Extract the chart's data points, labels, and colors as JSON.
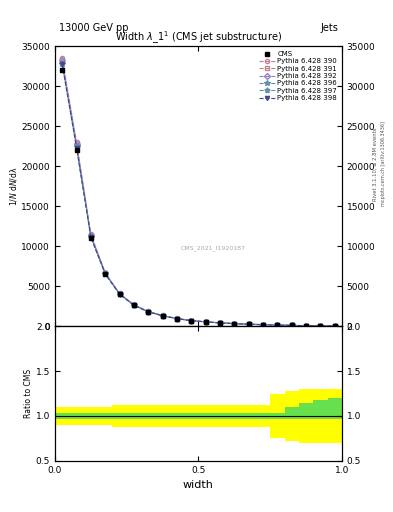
{
  "title_top": "13000 GeV pp",
  "title_right": "Jets",
  "plot_title": "Width $\\lambda\\_1^1$ (CMS jet substructure)",
  "xlabel": "width",
  "ylabel_ratio": "Ratio to CMS",
  "watermark": "CMS_2021_I1920187",
  "right_label1": "Rivet 3.1.10, ≥ 2.8M events",
  "right_label2": "mcplots.cern.ch [arXiv:1306.3436]",
  "x_data": [
    0.025,
    0.075,
    0.125,
    0.175,
    0.225,
    0.275,
    0.325,
    0.375,
    0.425,
    0.475,
    0.525,
    0.575,
    0.625,
    0.675,
    0.725,
    0.775,
    0.825,
    0.875,
    0.925,
    0.975
  ],
  "cms_data": [
    32000,
    22000,
    11000,
    6500,
    4000,
    2600,
    1800,
    1300,
    950,
    700,
    550,
    420,
    330,
    260,
    200,
    150,
    110,
    80,
    55,
    35
  ],
  "mc_390": [
    33500,
    23000,
    11500,
    6700,
    4100,
    2700,
    1850,
    1350,
    980,
    720,
    570,
    435,
    340,
    268,
    206,
    154,
    113,
    82,
    57,
    37
  ],
  "mc_391": [
    33000,
    22700,
    11300,
    6620,
    4060,
    2660,
    1830,
    1330,
    965,
    710,
    560,
    428,
    336,
    265,
    204,
    152,
    112,
    81,
    56,
    36
  ],
  "mc_392": [
    33200,
    22800,
    11350,
    6640,
    4070,
    2670,
    1840,
    1340,
    970,
    715,
    562,
    430,
    337,
    266,
    205,
    153,
    112,
    81,
    56,
    36
  ],
  "mc_396": [
    32800,
    22400,
    11150,
    6550,
    4020,
    2630,
    1810,
    1310,
    955,
    700,
    553,
    422,
    332,
    262,
    202,
    151,
    111,
    80,
    55,
    35
  ],
  "mc_397": [
    32900,
    22500,
    11200,
    6580,
    4030,
    2640,
    1815,
    1315,
    958,
    703,
    555,
    424,
    333,
    263,
    203,
    151,
    111,
    80,
    55,
    35
  ],
  "mc_398": [
    32700,
    22300,
    11100,
    6520,
    4010,
    2620,
    1800,
    1305,
    950,
    697,
    550,
    420,
    330,
    260,
    200,
    150,
    110,
    79,
    54,
    34
  ],
  "x_edges": [
    0.0,
    0.05,
    0.1,
    0.15,
    0.2,
    0.25,
    0.3,
    0.35,
    0.4,
    0.45,
    0.5,
    0.55,
    0.6,
    0.65,
    0.7,
    0.75,
    0.8,
    0.85,
    0.9,
    0.95,
    1.0
  ],
  "ylim_main": [
    0,
    35000
  ],
  "ylim_ratio": [
    0.5,
    2.0
  ],
  "xlim": [
    0.0,
    1.0
  ],
  "yticks_main": [
    0,
    5000,
    10000,
    15000,
    20000,
    25000,
    30000,
    35000
  ],
  "xticks_main": [
    0.0,
    0.5,
    1.0
  ],
  "ratio_yticks": [
    0.5,
    1.0,
    1.5,
    2.0
  ],
  "color_390": "#c88090",
  "color_391": "#c88090",
  "color_392": "#9080c8",
  "color_396": "#6090b0",
  "color_397": "#6090b0",
  "color_398": "#404890",
  "ratio_green_lo": [
    0.97,
    0.97,
    0.97,
    0.97,
    0.97,
    0.97,
    0.97,
    0.97,
    0.97,
    0.97,
    0.97,
    0.97,
    0.97,
    0.97,
    0.97,
    0.97,
    0.97,
    0.97,
    0.97,
    0.97
  ],
  "ratio_green_hi": [
    1.03,
    1.03,
    1.03,
    1.03,
    1.03,
    1.03,
    1.03,
    1.03,
    1.03,
    1.03,
    1.03,
    1.03,
    1.03,
    1.03,
    1.03,
    1.03,
    1.1,
    1.15,
    1.18,
    1.2
  ],
  "ratio_yellow_lo": [
    0.9,
    0.9,
    0.9,
    0.9,
    0.88,
    0.88,
    0.88,
    0.88,
    0.88,
    0.88,
    0.88,
    0.88,
    0.88,
    0.88,
    0.88,
    0.75,
    0.72,
    0.7,
    0.7,
    0.7
  ],
  "ratio_yellow_hi": [
    1.1,
    1.1,
    1.1,
    1.1,
    1.12,
    1.12,
    1.12,
    1.12,
    1.12,
    1.12,
    1.12,
    1.12,
    1.12,
    1.12,
    1.12,
    1.25,
    1.28,
    1.3,
    1.3,
    1.3
  ],
  "background_color": "#ffffff"
}
